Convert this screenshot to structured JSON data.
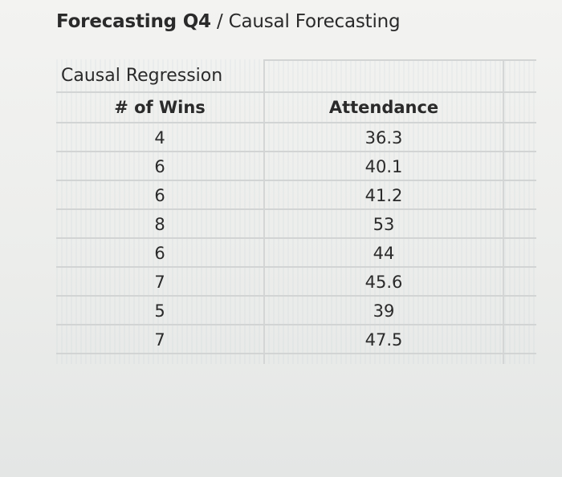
{
  "title": {
    "bold_part": "Forecasting Q4",
    "rest": " / Causal Forecasting"
  },
  "table": {
    "subtitle": "Causal Regression",
    "headers": [
      "# of Wins",
      "Attendance"
    ],
    "rows": [
      [
        "4",
        "36.3"
      ],
      [
        "6",
        "40.1"
      ],
      [
        "6",
        "41.2"
      ],
      [
        "8",
        "53"
      ],
      [
        "6",
        "44"
      ],
      [
        "7",
        "45.6"
      ],
      [
        "5",
        "39"
      ],
      [
        "7",
        "47.5"
      ]
    ]
  }
}
